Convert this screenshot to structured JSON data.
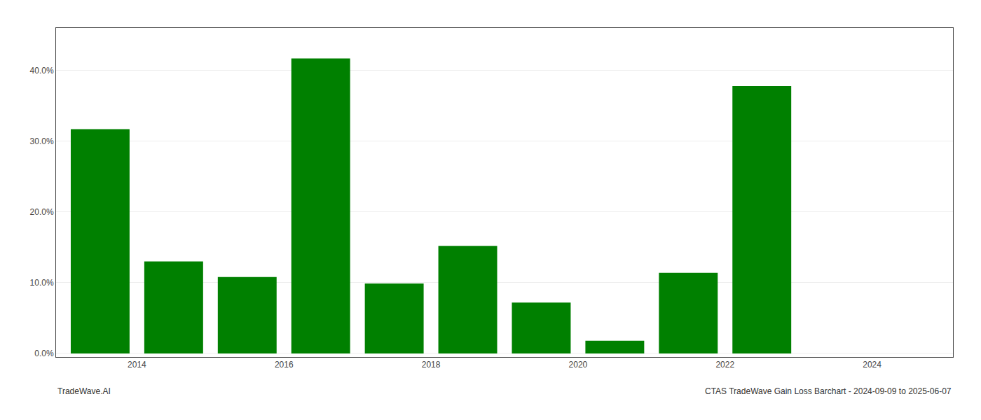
{
  "chart_data": {
    "type": "bar",
    "x": [
      2013,
      2014,
      2015,
      2016,
      2017,
      2018,
      2019,
      2020,
      2021,
      2022,
      2023
    ],
    "values": [
      0.317,
      0.13,
      0.108,
      0.417,
      0.099,
      0.152,
      0.072,
      0.018,
      0.114,
      0.378,
      0.0
    ],
    "color": "#008000",
    "xlim": [
      2012.4,
      2024.6
    ],
    "xticks": [
      {
        "value": 2013.5,
        "label": "2014"
      },
      {
        "value": 2015.5,
        "label": "2016"
      },
      {
        "value": 2017.5,
        "label": "2018"
      },
      {
        "value": 2019.5,
        "label": "2020"
      },
      {
        "value": 2021.5,
        "label": "2022"
      },
      {
        "value": 2023.5,
        "label": "2024"
      }
    ],
    "ylim": [
      -0.005,
      0.46
    ],
    "yticks": [
      {
        "value": 0.0,
        "label": "0.0%"
      },
      {
        "value": 0.1,
        "label": "10.0%"
      },
      {
        "value": 0.2,
        "label": "20.0%"
      },
      {
        "value": 0.3,
        "label": "30.0%"
      },
      {
        "value": 0.4,
        "label": "40.0%"
      }
    ],
    "grid": true,
    "annotations": [
      "TradeWave.AI",
      "CTAS TradeWave Gain Loss Barchart - 2024-09-09 to 2025-06-07"
    ]
  }
}
